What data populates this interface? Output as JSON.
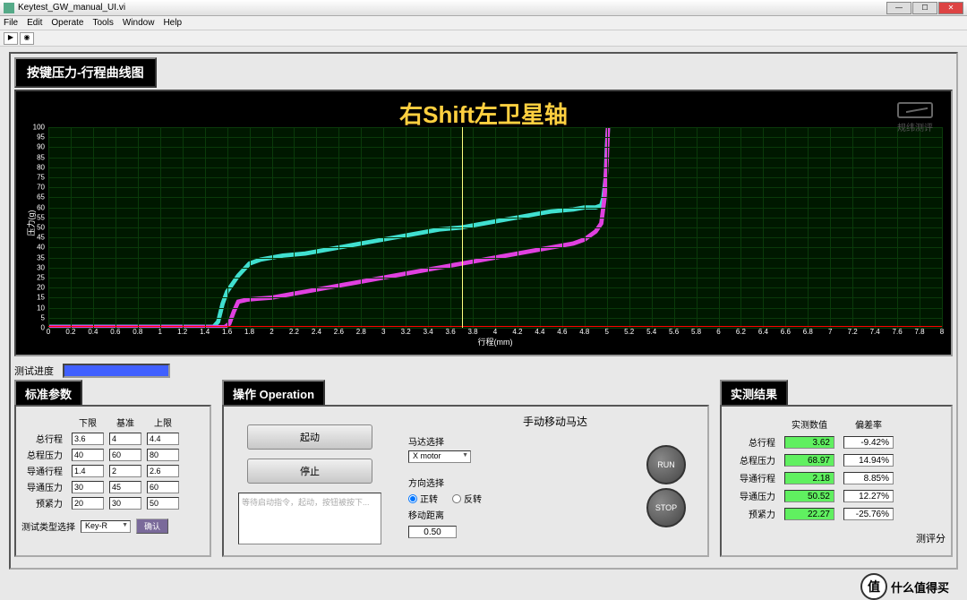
{
  "window": {
    "title": "Keytest_GW_manual_UI.vi"
  },
  "menu": [
    "File",
    "Edit",
    "Operate",
    "Tools",
    "Window",
    "Help"
  ],
  "header_box": "按键压力-行程曲线图",
  "chart": {
    "title": "右Shift左卫星轴",
    "watermark": "规纬测评",
    "watermark_sub": "GUNWEI TEST",
    "y_label": "压力(g)",
    "x_label": "行程(mm)",
    "y_min": 0,
    "y_max": 100,
    "y_step": 5,
    "x_min": 0,
    "x_max": 8,
    "x_step": 0.2,
    "bg": "#001800",
    "grid": "#0a3a0a",
    "cursor_x": 3.7,
    "red_y": 1,
    "series": [
      {
        "name": "press",
        "color": "#40e0d0",
        "width": 1.2,
        "points": [
          [
            0,
            0.5
          ],
          [
            0.2,
            0.5
          ],
          [
            0.4,
            0.5
          ],
          [
            0.6,
            0.5
          ],
          [
            0.8,
            0.5
          ],
          [
            1.0,
            0.5
          ],
          [
            1.2,
            0.5
          ],
          [
            1.4,
            0.5
          ],
          [
            1.48,
            0.5
          ],
          [
            1.52,
            3
          ],
          [
            1.56,
            12
          ],
          [
            1.6,
            18
          ],
          [
            1.7,
            26
          ],
          [
            1.8,
            32
          ],
          [
            1.9,
            34
          ],
          [
            2.0,
            35
          ],
          [
            2.1,
            36
          ],
          [
            2.2,
            36.5
          ],
          [
            2.3,
            37
          ],
          [
            2.4,
            38
          ],
          [
            2.5,
            39
          ],
          [
            2.6,
            40
          ],
          [
            2.7,
            41
          ],
          [
            2.8,
            42
          ],
          [
            2.9,
            43
          ],
          [
            3.0,
            44
          ],
          [
            3.1,
            45
          ],
          [
            3.2,
            46
          ],
          [
            3.3,
            47
          ],
          [
            3.4,
            48
          ],
          [
            3.5,
            49
          ],
          [
            3.6,
            49.5
          ],
          [
            3.7,
            50
          ],
          [
            3.8,
            51
          ],
          [
            3.9,
            52
          ],
          [
            4.0,
            53
          ],
          [
            4.1,
            54
          ],
          [
            4.2,
            55
          ],
          [
            4.3,
            56
          ],
          [
            4.4,
            57
          ],
          [
            4.5,
            58
          ],
          [
            4.6,
            58.5
          ],
          [
            4.7,
            59
          ],
          [
            4.8,
            60
          ],
          [
            4.85,
            60
          ],
          [
            4.9,
            60
          ],
          [
            4.95,
            61
          ],
          [
            4.97,
            65
          ],
          [
            4.99,
            75
          ],
          [
            5.0,
            90
          ],
          [
            5.01,
            100
          ]
        ]
      },
      {
        "name": "release",
        "color": "#e040e0",
        "width": 1.2,
        "points": [
          [
            0,
            0.3
          ],
          [
            0.2,
            0.3
          ],
          [
            0.4,
            0.3
          ],
          [
            0.6,
            0.3
          ],
          [
            0.8,
            0.3
          ],
          [
            1.0,
            0.3
          ],
          [
            1.2,
            0.3
          ],
          [
            1.4,
            0.3
          ],
          [
            1.5,
            0.3
          ],
          [
            1.58,
            0.3
          ],
          [
            1.62,
            2
          ],
          [
            1.66,
            8
          ],
          [
            1.7,
            13
          ],
          [
            1.78,
            14
          ],
          [
            1.88,
            14.5
          ],
          [
            2.0,
            15
          ],
          [
            2.1,
            16
          ],
          [
            2.2,
            17
          ],
          [
            2.3,
            18
          ],
          [
            2.4,
            19
          ],
          [
            2.5,
            20
          ],
          [
            2.6,
            21
          ],
          [
            2.7,
            22
          ],
          [
            2.8,
            23
          ],
          [
            2.9,
            24
          ],
          [
            3.0,
            25
          ],
          [
            3.1,
            26
          ],
          [
            3.2,
            27
          ],
          [
            3.3,
            28
          ],
          [
            3.4,
            29
          ],
          [
            3.5,
            30
          ],
          [
            3.6,
            31
          ],
          [
            3.7,
            32
          ],
          [
            3.8,
            33
          ],
          [
            3.9,
            34
          ],
          [
            4.0,
            35
          ],
          [
            4.1,
            36
          ],
          [
            4.2,
            37
          ],
          [
            4.3,
            38
          ],
          [
            4.4,
            39
          ],
          [
            4.5,
            40
          ],
          [
            4.6,
            41
          ],
          [
            4.7,
            42
          ],
          [
            4.8,
            44
          ],
          [
            4.85,
            46
          ],
          [
            4.9,
            48
          ],
          [
            4.95,
            52
          ],
          [
            4.98,
            65
          ],
          [
            5.0,
            85
          ],
          [
            5.01,
            100
          ]
        ]
      }
    ]
  },
  "progress": {
    "label": "测试进度",
    "pct": 100
  },
  "params": {
    "title": "标准参数",
    "cols": [
      "下限",
      "基准",
      "上限"
    ],
    "rows": [
      {
        "label": "总行程",
        "vals": [
          "3.6",
          "4",
          "4.4"
        ]
      },
      {
        "label": "总程压力",
        "vals": [
          "40",
          "60",
          "80"
        ]
      },
      {
        "label": "导通行程",
        "vals": [
          "1.4",
          "2",
          "2.6"
        ]
      },
      {
        "label": "导通压力",
        "vals": [
          "30",
          "45",
          "60"
        ]
      },
      {
        "label": "预紧力",
        "vals": [
          "20",
          "30",
          "50"
        ]
      }
    ],
    "type_label": "测试类型选择",
    "type_value": "Key-R",
    "type_btn": "确认"
  },
  "operation": {
    "title": "操作 Operation",
    "start": "起动",
    "stop": "停止",
    "placeholder": "等待启动指令，起动，按钮被按下...",
    "manual_title": "手动移动马达",
    "motor_label": "马达选择",
    "motor_value": "X motor",
    "dir_label": "方向选择",
    "dir_fwd": "正转",
    "dir_rev": "反转",
    "dist_label": "移动距离",
    "dist_value": "0.50",
    "run": "RUN",
    "stopbtn": "STOP"
  },
  "results": {
    "title": "实测结果",
    "cols": [
      "实测数值",
      "偏差率"
    ],
    "rows": [
      {
        "label": "总行程",
        "val": "3.62",
        "pct": "-9.42%"
      },
      {
        "label": "总程压力",
        "val": "68.97",
        "pct": "14.94%"
      },
      {
        "label": "导通行程",
        "val": "2.18",
        "pct": "8.85%"
      },
      {
        "label": "导通压力",
        "val": "50.52",
        "pct": "12.27%"
      },
      {
        "label": "预紧力",
        "val": "22.27",
        "pct": "-25.76%"
      }
    ],
    "score_label": "测评分"
  },
  "footer": {
    "logo": "值",
    "text": "什么值得买"
  }
}
